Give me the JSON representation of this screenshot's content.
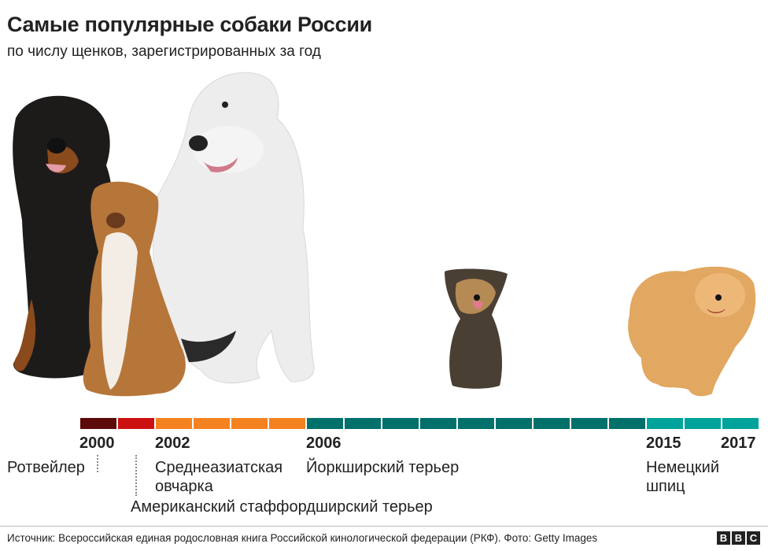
{
  "header": {
    "title": "Самые популярные собаки России",
    "subtitle": "по числу щенков, зарегистрированных за год"
  },
  "timeline": {
    "segment_colors": [
      "#5c0a0a",
      "#cc1111",
      "#f58220",
      "#f58220",
      "#f58220",
      "#f58220",
      "#00706b",
      "#00706b",
      "#00706b",
      "#00706b",
      "#00706b",
      "#00706b",
      "#00706b",
      "#00706b",
      "#00706b",
      "#00a39b",
      "#00a39b",
      "#00a39b"
    ],
    "years": [
      "2000",
      "2002",
      "2006",
      "2015",
      "2017"
    ]
  },
  "breeds": {
    "rottweiler": "Ротвейлер",
    "central_asian_line1": "Среднеазиатская",
    "central_asian_line2": "овчарка",
    "staffordshire": "Американский стаффордширский терьер",
    "yorkshire": "Йоркширский терьер",
    "spitz_line1": "Немецкий",
    "spitz_line2": "шпиц"
  },
  "footer": {
    "source": "Источник: Всероссийская единая родословная книга Российской кинологической федерации (РКФ). Фото: Getty Images",
    "logo": [
      "B",
      "B",
      "C"
    ]
  }
}
